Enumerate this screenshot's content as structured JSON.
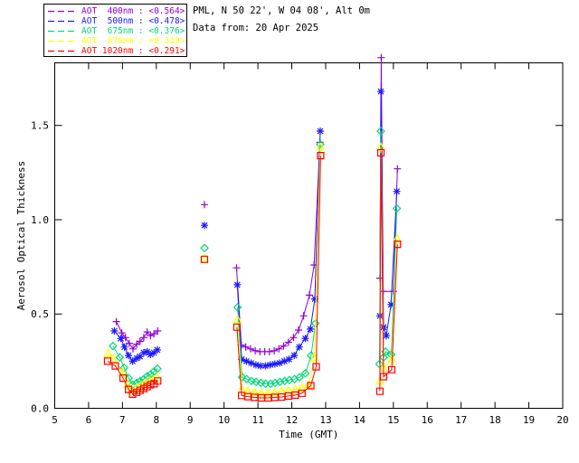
{
  "header": {
    "title": "PML, N 50 22', W 04 08', Alt 0m",
    "subtitle": "Data from: 20 Apr 2025"
  },
  "chart_data": {
    "type": "line",
    "title": "",
    "xlabel": "Time (GMT)",
    "ylabel": "Aerosol Optical Thickness",
    "xlim": [
      5,
      20
    ],
    "ylim": [
      0,
      1.832
    ],
    "xticks": [
      5,
      6,
      7,
      8,
      9,
      10,
      11,
      12,
      13,
      14,
      15,
      16,
      17,
      18,
      19,
      20
    ],
    "yticks": [
      0.0,
      0.5,
      1.0,
      1.5
    ],
    "ytick_labels": [
      "0.0",
      "0.5",
      "1.0",
      "1.5"
    ],
    "grid": false,
    "legend_position": "top-left",
    "background_color": "#ffffff",
    "axis_color": "#000000",
    "series": [
      {
        "name": "AOT 400nm",
        "legend_label": "AOT  400nm : <0.564>",
        "mean": 0.564,
        "color": "#9400D3",
        "marker": "plus",
        "segments": [
          [
            [
              6.82,
              0.46
            ],
            [
              6.98,
              0.4
            ],
            [
              7.09,
              0.375
            ],
            [
              7.2,
              0.345
            ],
            [
              7.31,
              0.315
            ],
            [
              7.42,
              0.34
            ],
            [
              7.52,
              0.355
            ],
            [
              7.63,
              0.375
            ],
            [
              7.73,
              0.405
            ],
            [
              7.83,
              0.385
            ],
            [
              7.93,
              0.395
            ],
            [
              8.04,
              0.41
            ]
          ],
          [
            [
              9.42,
              1.08
            ]
          ],
          [
            [
              10.37,
              0.745
            ],
            [
              10.51,
              0.335
            ],
            [
              10.64,
              0.325
            ],
            [
              10.78,
              0.315
            ],
            [
              10.92,
              0.305
            ],
            [
              11.06,
              0.3
            ],
            [
              11.2,
              0.3
            ],
            [
              11.34,
              0.3
            ],
            [
              11.48,
              0.305
            ],
            [
              11.62,
              0.315
            ],
            [
              11.76,
              0.33
            ],
            [
              11.9,
              0.35
            ],
            [
              12.05,
              0.375
            ],
            [
              12.2,
              0.415
            ],
            [
              12.35,
              0.49
            ],
            [
              12.52,
              0.6
            ],
            [
              12.66,
              0.76
            ],
            [
              12.83,
              1.41
            ]
          ],
          [
            [
              14.6,
              0.69
            ],
            [
              14.64,
              1.86
            ],
            [
              14.7,
              0.62
            ],
            [
              15.0,
              0.62
            ],
            [
              15.12,
              1.27
            ]
          ]
        ]
      },
      {
        "name": "AOT 500nm",
        "legend_label": "AOT  500nm : <0.478>",
        "mean": 0.478,
        "color": "#1A1AFF",
        "marker": "asterisk",
        "segments": [
          [
            [
              6.76,
              0.41
            ],
            [
              6.95,
              0.37
            ],
            [
              7.06,
              0.325
            ],
            [
              7.18,
              0.28
            ],
            [
              7.3,
              0.25
            ],
            [
              7.42,
              0.265
            ],
            [
              7.52,
              0.275
            ],
            [
              7.63,
              0.295
            ],
            [
              7.73,
              0.3
            ],
            [
              7.83,
              0.285
            ],
            [
              7.93,
              0.295
            ],
            [
              8.03,
              0.31
            ]
          ],
          [
            [
              9.42,
              0.97
            ]
          ],
          [
            [
              10.39,
              0.655
            ],
            [
              10.52,
              0.26
            ],
            [
              10.66,
              0.25
            ],
            [
              10.8,
              0.24
            ],
            [
              10.94,
              0.23
            ],
            [
              11.08,
              0.225
            ],
            [
              11.22,
              0.225
            ],
            [
              11.36,
              0.23
            ],
            [
              11.5,
              0.235
            ],
            [
              11.64,
              0.24
            ],
            [
              11.78,
              0.25
            ],
            [
              11.92,
              0.26
            ],
            [
              12.07,
              0.28
            ],
            [
              12.22,
              0.325
            ],
            [
              12.4,
              0.37
            ],
            [
              12.55,
              0.42
            ],
            [
              12.68,
              0.58
            ],
            [
              12.84,
              1.47
            ]
          ],
          [
            [
              14.6,
              0.49
            ],
            [
              14.63,
              1.68
            ],
            [
              14.71,
              0.43
            ],
            [
              14.79,
              0.385
            ],
            [
              14.93,
              0.55
            ],
            [
              15.1,
              1.15
            ]
          ]
        ]
      },
      {
        "name": "AOT 675nm",
        "legend_label": "AOT  675nm : <0.376>",
        "mean": 0.376,
        "color": "#00D878",
        "marker": "diamond",
        "segments": [
          [
            [
              6.72,
              0.33
            ],
            [
              6.92,
              0.27
            ],
            [
              7.05,
              0.215
            ],
            [
              7.18,
              0.16
            ],
            [
              7.3,
              0.125
            ],
            [
              7.42,
              0.135
            ],
            [
              7.52,
              0.145
            ],
            [
              7.63,
              0.155
            ],
            [
              7.73,
              0.17
            ],
            [
              7.83,
              0.18
            ],
            [
              7.93,
              0.195
            ],
            [
              8.03,
              0.21
            ]
          ],
          [
            [
              9.42,
              0.85
            ]
          ],
          [
            [
              10.4,
              0.535
            ],
            [
              10.53,
              0.165
            ],
            [
              10.67,
              0.155
            ],
            [
              10.81,
              0.145
            ],
            [
              10.95,
              0.14
            ],
            [
              11.09,
              0.135
            ],
            [
              11.23,
              0.13
            ],
            [
              11.37,
              0.13
            ],
            [
              11.51,
              0.135
            ],
            [
              11.65,
              0.14
            ],
            [
              11.79,
              0.145
            ],
            [
              11.93,
              0.15
            ],
            [
              12.08,
              0.155
            ],
            [
              12.23,
              0.165
            ],
            [
              12.4,
              0.185
            ],
            [
              12.57,
              0.28
            ],
            [
              12.7,
              0.45
            ],
            [
              12.84,
              1.4
            ]
          ],
          [
            [
              14.59,
              0.235
            ],
            [
              14.63,
              1.47
            ],
            [
              14.71,
              0.27
            ],
            [
              14.77,
              0.3
            ],
            [
              14.94,
              0.285
            ],
            [
              15.1,
              1.06
            ]
          ]
        ]
      },
      {
        "name": "AOT 870nm",
        "legend_label": "AOT  870nm : <0.319>",
        "mean": 0.319,
        "color": "#FFFF00",
        "marker": "triangle",
        "segments": [
          [
            [
              6.58,
              0.29
            ],
            [
              6.72,
              0.26
            ],
            [
              7.0,
              0.19
            ],
            [
              7.15,
              0.125
            ],
            [
              7.28,
              0.095
            ],
            [
              7.4,
              0.105
            ],
            [
              7.51,
              0.115
            ],
            [
              7.62,
              0.125
            ],
            [
              7.72,
              0.135
            ],
            [
              7.82,
              0.145
            ],
            [
              7.92,
              0.15
            ],
            [
              8.02,
              0.165
            ]
          ],
          [
            [
              9.42,
              0.795
            ]
          ],
          [
            [
              10.4,
              0.47
            ],
            [
              10.53,
              0.1
            ],
            [
              10.7,
              0.09
            ],
            [
              10.9,
              0.085
            ],
            [
              11.1,
              0.08
            ],
            [
              11.3,
              0.08
            ],
            [
              11.5,
              0.085
            ],
            [
              11.7,
              0.09
            ],
            [
              11.9,
              0.095
            ],
            [
              12.1,
              0.1
            ],
            [
              12.3,
              0.11
            ],
            [
              12.5,
              0.125
            ],
            [
              12.67,
              0.27
            ],
            [
              12.84,
              1.385
            ]
          ],
          [
            [
              14.6,
              0.145
            ],
            [
              14.63,
              1.385
            ],
            [
              14.71,
              0.215
            ],
            [
              14.95,
              0.26
            ],
            [
              15.11,
              0.9
            ]
          ]
        ]
      },
      {
        "name": "AOT 1020nm",
        "legend_label": "AOT 1020nm : <0.291>",
        "mean": 0.291,
        "color": "#FF0000",
        "marker": "square",
        "segments": [
          [
            [
              6.56,
              0.25
            ],
            [
              6.79,
              0.225
            ],
            [
              7.02,
              0.16
            ],
            [
              7.18,
              0.1
            ],
            [
              7.3,
              0.075
            ],
            [
              7.42,
              0.085
            ],
            [
              7.52,
              0.095
            ],
            [
              7.63,
              0.105
            ],
            [
              7.73,
              0.115
            ],
            [
              7.83,
              0.125
            ],
            [
              7.93,
              0.13
            ],
            [
              8.04,
              0.145
            ]
          ],
          [
            [
              9.42,
              0.79
            ]
          ],
          [
            [
              10.38,
              0.43
            ],
            [
              10.52,
              0.068
            ],
            [
              10.7,
              0.062
            ],
            [
              10.9,
              0.058
            ],
            [
              11.1,
              0.055
            ],
            [
              11.3,
              0.055
            ],
            [
              11.5,
              0.058
            ],
            [
              11.7,
              0.06
            ],
            [
              11.9,
              0.065
            ],
            [
              12.1,
              0.07
            ],
            [
              12.3,
              0.08
            ],
            [
              12.56,
              0.12
            ],
            [
              12.72,
              0.22
            ],
            [
              12.85,
              1.34
            ]
          ],
          [
            [
              14.6,
              0.09
            ],
            [
              14.63,
              1.355
            ],
            [
              14.71,
              0.168
            ],
            [
              14.95,
              0.205
            ],
            [
              15.12,
              0.87
            ]
          ]
        ]
      }
    ]
  }
}
